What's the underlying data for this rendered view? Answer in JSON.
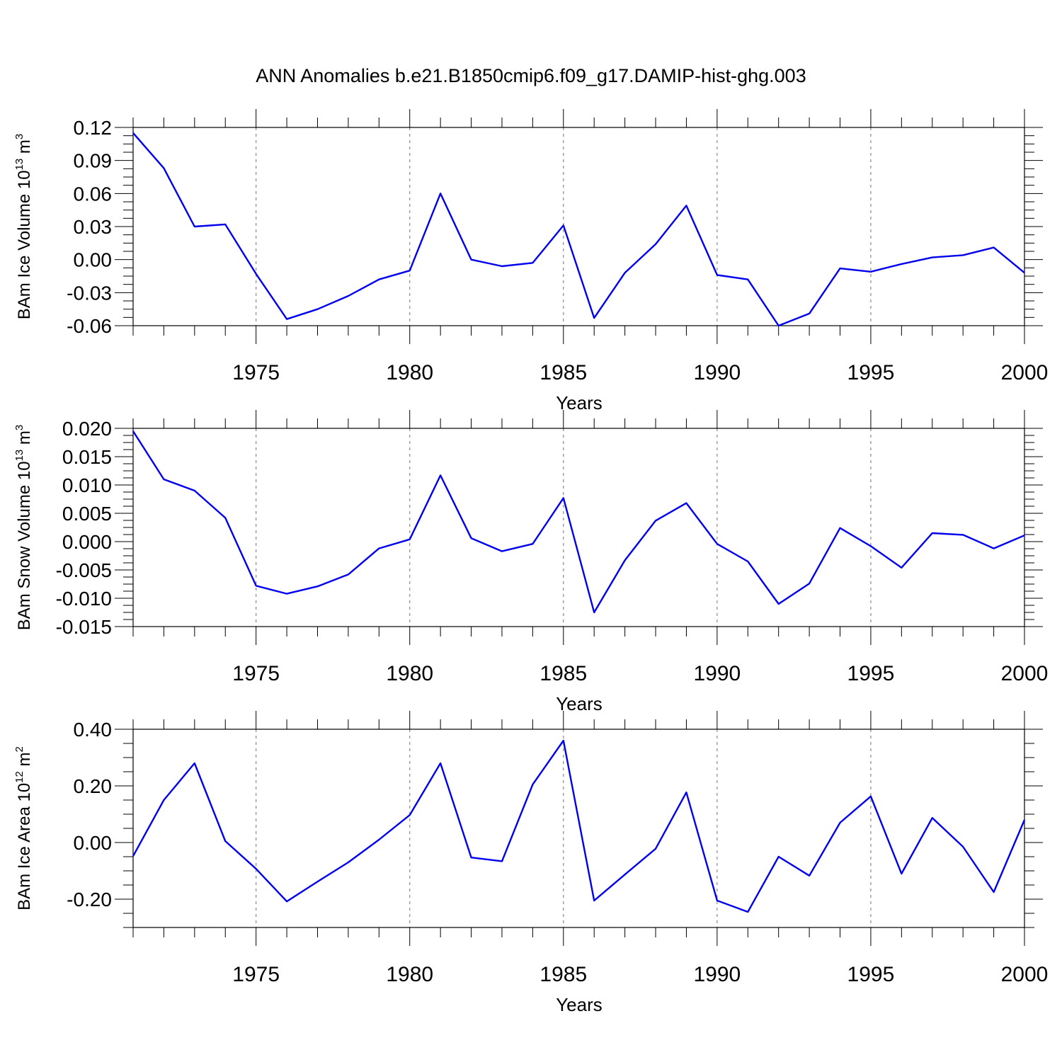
{
  "title": "ANN Anomalies b.e21.B1850cmip6.f09_g17.DAMIP-hist-ghg.003",
  "chart_data": [
    {
      "type": "line",
      "xlabel": "Years",
      "ylabel": "BAm Ice Volume 10",
      "ylabel_exp": "13",
      "ylabel_unit": " m",
      "ylabel_unit_exp": "3",
      "xlim": [
        1971,
        2000
      ],
      "ylim": [
        -0.06,
        0.12
      ],
      "xticks": [
        1975,
        1980,
        1985,
        1990,
        1995,
        2000
      ],
      "yticks": [
        "0.12",
        "0.09",
        "0.06",
        "0.03",
        "0.00",
        "-0.03",
        "-0.06"
      ],
      "ytick_values": [
        0.12,
        0.09,
        0.06,
        0.03,
        0.0,
        -0.03,
        -0.06
      ],
      "grid": "vertical dashed at major x ticks",
      "color": "#0000ee",
      "x": [
        1971,
        1972,
        1973,
        1974,
        1975,
        1976,
        1977,
        1978,
        1979,
        1980,
        1981,
        1982,
        1983,
        1984,
        1985,
        1986,
        1987,
        1988,
        1989,
        1990,
        1991,
        1992,
        1993,
        1994,
        1995,
        1996,
        1997,
        1998,
        1999,
        2000
      ],
      "y": [
        0.115,
        0.083,
        0.03,
        0.032,
        -0.013,
        -0.054,
        -0.045,
        -0.033,
        -0.018,
        -0.01,
        0.06,
        0.0,
        -0.006,
        -0.003,
        0.031,
        -0.053,
        -0.012,
        0.014,
        0.049,
        -0.014,
        -0.018,
        -0.06,
        -0.049,
        -0.008,
        -0.011,
        -0.004,
        0.002,
        0.004,
        0.011,
        -0.012
      ]
    },
    {
      "type": "line",
      "xlabel": "Years",
      "ylabel": "BAm Snow Volume 10",
      "ylabel_exp": "13",
      "ylabel_unit": " m",
      "ylabel_unit_exp": "3",
      "xlim": [
        1971,
        2000
      ],
      "ylim": [
        -0.015,
        0.02
      ],
      "xticks": [
        1975,
        1980,
        1985,
        1990,
        1995,
        2000
      ],
      "yticks": [
        "0.020",
        "0.015",
        "0.010",
        "0.005",
        "0.000",
        "-0.005",
        "-0.010",
        "-0.015"
      ],
      "ytick_values": [
        0.02,
        0.015,
        0.01,
        0.005,
        0.0,
        -0.005,
        -0.01,
        -0.015
      ],
      "grid": "vertical dashed at major x ticks",
      "color": "#0000ee",
      "x": [
        1971,
        1972,
        1973,
        1974,
        1975,
        1976,
        1977,
        1978,
        1979,
        1980,
        1981,
        1982,
        1983,
        1984,
        1985,
        1986,
        1987,
        1988,
        1989,
        1990,
        1991,
        1992,
        1993,
        1994,
        1995,
        1996,
        1997,
        1998,
        1999,
        2000
      ],
      "y": [
        0.0195,
        0.011,
        0.009,
        0.0042,
        -0.0078,
        -0.0092,
        -0.0079,
        -0.0058,
        -0.0012,
        0.0004,
        0.0117,
        0.0006,
        -0.0017,
        -0.0004,
        0.0077,
        -0.0125,
        -0.0033,
        0.0037,
        0.0068,
        -0.0004,
        -0.0035,
        -0.011,
        -0.0074,
        0.0024,
        -0.0008,
        -0.0046,
        0.0015,
        0.0012,
        -0.0012,
        0.0011
      ]
    },
    {
      "type": "line",
      "xlabel": "Years",
      "ylabel": "BAm Ice Area 10",
      "ylabel_exp": "12",
      "ylabel_unit": " m",
      "ylabel_unit_exp": "2",
      "xlim": [
        1971,
        2000
      ],
      "ylim": [
        -0.3,
        0.4
      ],
      "xticks": [
        1975,
        1980,
        1985,
        1990,
        1995,
        2000
      ],
      "yticks": [
        "0.40",
        "0.20",
        "0.00",
        "-0.20"
      ],
      "ytick_values": [
        0.4,
        0.2,
        0.0,
        -0.2
      ],
      "grid": "vertical dashed at major x ticks",
      "color": "#0000ee",
      "x": [
        1971,
        1972,
        1973,
        1974,
        1975,
        1976,
        1977,
        1978,
        1979,
        1980,
        1981,
        1982,
        1983,
        1984,
        1985,
        1986,
        1987,
        1988,
        1989,
        1990,
        1991,
        1992,
        1993,
        1994,
        1995,
        1996,
        1997,
        1998,
        1999,
        2000
      ],
      "y": [
        -0.048,
        0.15,
        0.28,
        0.005,
        -0.093,
        -0.208,
        -0.138,
        -0.07,
        0.01,
        0.097,
        0.28,
        -0.053,
        -0.066,
        0.205,
        0.36,
        -0.205,
        -0.113,
        -0.022,
        0.177,
        -0.205,
        -0.245,
        -0.05,
        -0.117,
        0.07,
        0.163,
        -0.11,
        0.087,
        -0.015,
        -0.175,
        0.08
      ]
    }
  ]
}
